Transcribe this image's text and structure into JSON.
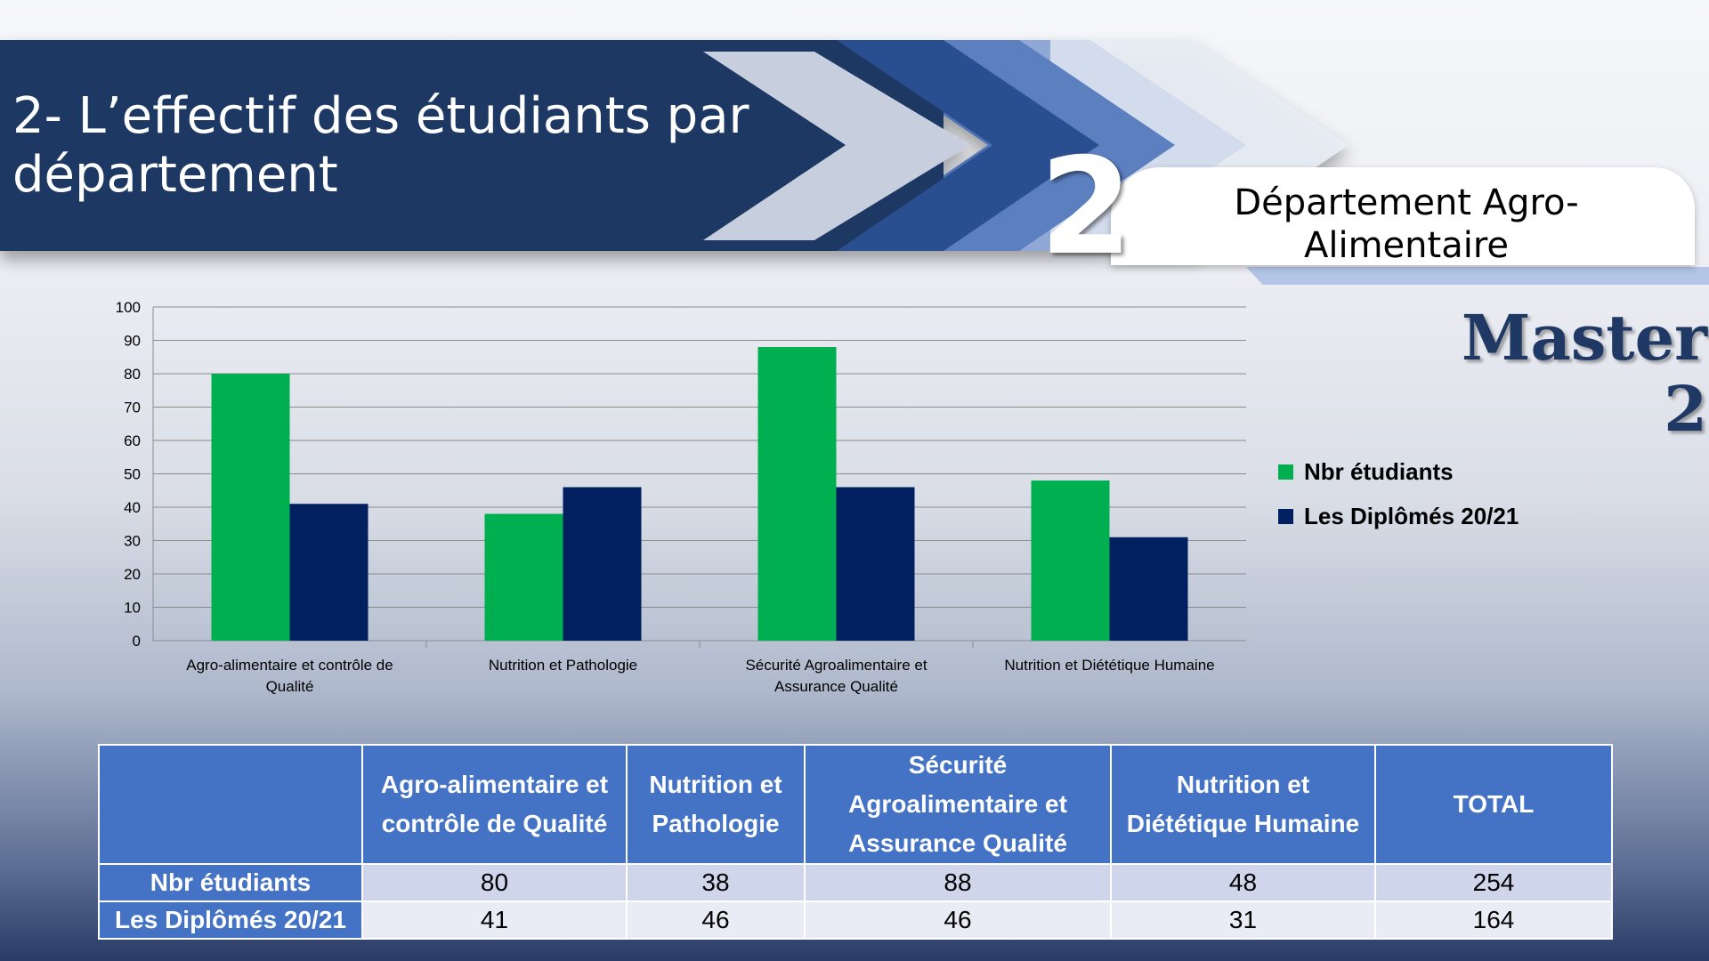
{
  "header": {
    "title": "2- L’effectif des étudiants par département",
    "badge_number": "2",
    "department": "Département Agro-Alimentaire",
    "level": "Master 2"
  },
  "colors": {
    "series_students": "#00b050",
    "series_graduates": "#002060",
    "banner_dark": "#1f3864",
    "table_header": "#4472c4"
  },
  "chart_data": {
    "type": "bar",
    "categories": [
      "Agro-alimentaire et contrôle de Qualité",
      "Nutrition et Pathologie",
      "Sécurité Agroalimentaire et Assurance Qualité",
      "Nutrition et Diététique Humaine"
    ],
    "series": [
      {
        "name": "Nbr étudiants",
        "values": [
          80,
          38,
          88,
          48
        ],
        "color": "#00b050"
      },
      {
        "name": "Les Diplômés 20/21",
        "values": [
          41,
          46,
          46,
          31
        ],
        "color": "#002060"
      }
    ],
    "ylim": [
      0,
      100
    ],
    "yticks": [
      0,
      10,
      20,
      30,
      40,
      50,
      60,
      70,
      80,
      90,
      100
    ],
    "grid": true,
    "legend": "right"
  },
  "table": {
    "header_corner": "",
    "columns": [
      "Agro-alimentaire et contrôle de Qualité",
      "Nutrition et Pathologie",
      "Sécurité Agroalimentaire et Assurance Qualité",
      "Nutrition et Diététique Humaine",
      "TOTAL"
    ],
    "rows": [
      {
        "label": "Nbr étudiants",
        "cells": [
          "80",
          "38",
          "88",
          "48",
          "254"
        ]
      },
      {
        "label": "Les Diplômés 20/21",
        "cells": [
          "41",
          "46",
          "46",
          "31",
          "164"
        ]
      }
    ]
  }
}
